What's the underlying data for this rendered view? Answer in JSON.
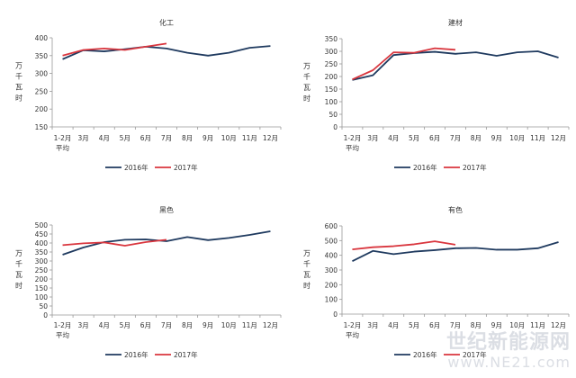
{
  "chart_data": [
    {
      "type": "line",
      "title": "化工",
      "ylabel": "万千瓦时",
      "xlabel": "",
      "categories": [
        "1-2月\n平均",
        "3月",
        "4月",
        "5月",
        "6月",
        "7月",
        "8月",
        "9月",
        "10月",
        "11月",
        "12月"
      ],
      "ylim": [
        150,
        400
      ],
      "yticks": [
        150,
        200,
        250,
        300,
        350,
        400
      ],
      "grid": false,
      "legend_position": "bottom",
      "series": [
        {
          "name": "2016年",
          "color": "#1f3a5f",
          "values": [
            340,
            365,
            362,
            368,
            375,
            370,
            358,
            350,
            358,
            372,
            377
          ]
        },
        {
          "name": "2017年",
          "color": "#d9363e",
          "values": [
            350,
            366,
            370,
            366,
            375,
            384
          ]
        }
      ]
    },
    {
      "type": "line",
      "title": "建材",
      "ylabel": "万千瓦时",
      "xlabel": "",
      "categories": [
        "1-2月\n平均",
        "3月",
        "4月",
        "5月",
        "6月",
        "7月",
        "8月",
        "9月",
        "10月",
        "11月",
        "12月"
      ],
      "ylim": [
        0,
        350
      ],
      "yticks": [
        0,
        50,
        100,
        150,
        200,
        250,
        300,
        350
      ],
      "grid": false,
      "legend_position": "bottom",
      "series": [
        {
          "name": "2016年",
          "color": "#1f3a5f",
          "values": [
            186,
            205,
            285,
            293,
            298,
            290,
            296,
            282,
            296,
            300,
            275
          ]
        },
        {
          "name": "2017年",
          "color": "#d9363e",
          "values": [
            188,
            225,
            296,
            294,
            312,
            306
          ]
        }
      ]
    },
    {
      "type": "line",
      "title": "黑色",
      "ylabel": "万千瓦时",
      "xlabel": "",
      "categories": [
        "1-2月\n平均",
        "3月",
        "4月",
        "5月",
        "6月",
        "7月",
        "8月",
        "9月",
        "10月",
        "11月",
        "12月"
      ],
      "ylim": [
        0,
        500
      ],
      "yticks": [
        0,
        50,
        100,
        150,
        200,
        250,
        300,
        350,
        400,
        450,
        500
      ],
      "grid": false,
      "legend_position": "bottom",
      "series": [
        {
          "name": "2016年",
          "color": "#1f3a5f",
          "values": [
            335,
            375,
            405,
            418,
            420,
            410,
            433,
            416,
            428,
            445,
            465
          ]
        },
        {
          "name": "2017年",
          "color": "#d9363e",
          "values": [
            388,
            398,
            403,
            385,
            405,
            418
          ]
        }
      ]
    },
    {
      "type": "line",
      "title": "有色",
      "ylabel": "万千瓦时",
      "xlabel": "",
      "categories": [
        "1-2月\n平均",
        "3月",
        "4月",
        "5月",
        "6月",
        "7月",
        "8月",
        "9月",
        "10月",
        "11月",
        "12月"
      ],
      "ylim": [
        0,
        600
      ],
      "yticks": [
        0,
        100,
        200,
        300,
        400,
        500,
        600
      ],
      "grid": false,
      "legend_position": "bottom",
      "series": [
        {
          "name": "2016年",
          "color": "#1f3a5f",
          "values": [
            360,
            430,
            408,
            425,
            435,
            448,
            450,
            438,
            438,
            448,
            490
          ]
        },
        {
          "name": "2017年",
          "color": "#d9363e",
          "values": [
            440,
            455,
            462,
            475,
            495,
            472
          ]
        }
      ]
    }
  ],
  "watermark": {
    "line1": "世纪新能源网",
    "line2": "www.NE21.com"
  }
}
